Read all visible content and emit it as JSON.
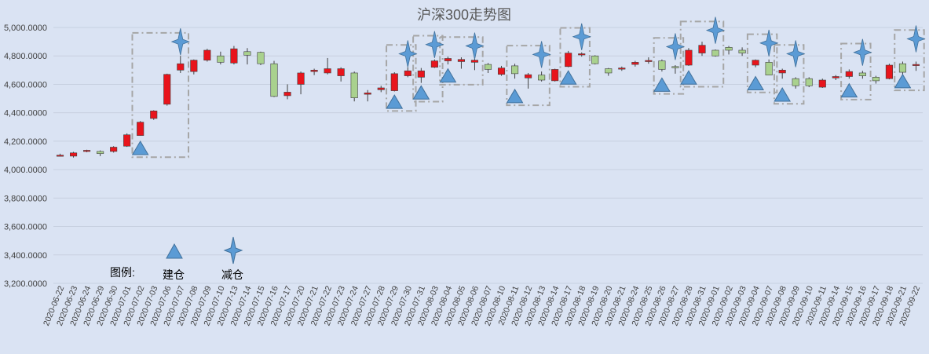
{
  "chart_data": {
    "type": "candlestick",
    "title": "沪深300走势图",
    "ylim": [
      3200,
      5000
    ],
    "yticks": [
      3200,
      3400,
      3600,
      3800,
      4000,
      4200,
      4400,
      4600,
      4800,
      5000
    ],
    "ytick_labels": [
      "3,200.0000",
      "3,400.0000",
      "3,600.0000",
      "3,800.0000",
      "4,000.0000",
      "4,200.0000",
      "4,400.0000",
      "4,600.0000",
      "4,800.0000",
      "5,000.0000"
    ],
    "grid": true,
    "categories": [
      "2020-06-22",
      "2020-06-23",
      "2020-06-24",
      "2020-06-29",
      "2020-06-30",
      "2020-07-01",
      "2020-07-02",
      "2020-07-03",
      "2020-07-06",
      "2020-07-07",
      "2020-07-08",
      "2020-07-09",
      "2020-07-10",
      "2020-07-13",
      "2020-07-14",
      "2020-07-15",
      "2020-07-16",
      "2020-07-17",
      "2020-07-20",
      "2020-07-21",
      "2020-07-22",
      "2020-07-23",
      "2020-07-24",
      "2020-07-27",
      "2020-07-28",
      "2020-07-29",
      "2020-07-30",
      "2020-07-31",
      "2020-08-03",
      "2020-08-04",
      "2020-08-05",
      "2020-08-06",
      "2020-08-07",
      "2020-08-10",
      "2020-08-11",
      "2020-08-12",
      "2020-08-13",
      "2020-08-14",
      "2020-08-17",
      "2020-08-18",
      "2020-08-19",
      "2020-08-20",
      "2020-08-21",
      "2020-08-24",
      "2020-08-25",
      "2020-08-26",
      "2020-08-27",
      "2020-08-28",
      "2020-08-31",
      "2020-09-01",
      "2020-09-02",
      "2020-09-03",
      "2020-09-04",
      "2020-09-07",
      "2020-09-08",
      "2020-09-09",
      "2020-09-10",
      "2020-09-11",
      "2020-09-14",
      "2020-09-15",
      "2020-09-16",
      "2020-09-17",
      "2020-09-18",
      "2020-09-21",
      "2020-09-22"
    ],
    "ohlc": [
      {
        "o": 4098,
        "h": 4112,
        "l": 4095,
        "c": 4102
      },
      {
        "o": 4095,
        "h": 4125,
        "l": 4085,
        "c": 4118
      },
      {
        "o": 4128,
        "h": 4140,
        "l": 4122,
        "c": 4136
      },
      {
        "o": 4128,
        "h": 4135,
        "l": 4095,
        "c": 4113
      },
      {
        "o": 4128,
        "h": 4165,
        "l": 4120,
        "c": 4158
      },
      {
        "o": 4165,
        "h": 4255,
        "l": 4160,
        "c": 4245
      },
      {
        "o": 4240,
        "h": 4342,
        "l": 4238,
        "c": 4334
      },
      {
        "o": 4360,
        "h": 4418,
        "l": 4350,
        "c": 4413
      },
      {
        "o": 4460,
        "h": 4675,
        "l": 4450,
        "c": 4670
      },
      {
        "o": 4700,
        "h": 4800,
        "l": 4680,
        "c": 4745
      },
      {
        "o": 4690,
        "h": 4775,
        "l": 4670,
        "c": 4770
      },
      {
        "o": 4770,
        "h": 4850,
        "l": 4760,
        "c": 4840
      },
      {
        "o": 4800,
        "h": 4830,
        "l": 4740,
        "c": 4755
      },
      {
        "o": 4750,
        "h": 4870,
        "l": 4740,
        "c": 4850
      },
      {
        "o": 4830,
        "h": 4855,
        "l": 4740,
        "c": 4805
      },
      {
        "o": 4825,
        "h": 4830,
        "l": 4735,
        "c": 4745
      },
      {
        "o": 4745,
        "h": 4765,
        "l": 4510,
        "c": 4515
      },
      {
        "o": 4520,
        "h": 4600,
        "l": 4495,
        "c": 4545
      },
      {
        "o": 4600,
        "h": 4690,
        "l": 4530,
        "c": 4680
      },
      {
        "o": 4690,
        "h": 4710,
        "l": 4665,
        "c": 4700
      },
      {
        "o": 4680,
        "h": 4785,
        "l": 4670,
        "c": 4710
      },
      {
        "o": 4660,
        "h": 4720,
        "l": 4620,
        "c": 4710
      },
      {
        "o": 4680,
        "h": 4690,
        "l": 4480,
        "c": 4505
      },
      {
        "o": 4530,
        "h": 4560,
        "l": 4480,
        "c": 4540
      },
      {
        "o": 4562,
        "h": 4590,
        "l": 4545,
        "c": 4575
      },
      {
        "o": 4555,
        "h": 4685,
        "l": 4550,
        "c": 4675
      },
      {
        "o": 4660,
        "h": 4720,
        "l": 4650,
        "c": 4695
      },
      {
        "o": 4650,
        "h": 4715,
        "l": 4610,
        "c": 4695
      },
      {
        "o": 4720,
        "h": 4775,
        "l": 4715,
        "c": 4765
      },
      {
        "o": 4765,
        "h": 4795,
        "l": 4740,
        "c": 4782
      },
      {
        "o": 4760,
        "h": 4790,
        "l": 4710,
        "c": 4775
      },
      {
        "o": 4755,
        "h": 4790,
        "l": 4700,
        "c": 4770
      },
      {
        "o": 4740,
        "h": 4750,
        "l": 4680,
        "c": 4705
      },
      {
        "o": 4670,
        "h": 4730,
        "l": 4660,
        "c": 4715
      },
      {
        "o": 4730,
        "h": 4745,
        "l": 4640,
        "c": 4675
      },
      {
        "o": 4645,
        "h": 4680,
        "l": 4570,
        "c": 4668
      },
      {
        "o": 4665,
        "h": 4690,
        "l": 4620,
        "c": 4630
      },
      {
        "o": 4625,
        "h": 4710,
        "l": 4620,
        "c": 4705
      },
      {
        "o": 4725,
        "h": 4835,
        "l": 4720,
        "c": 4820
      },
      {
        "o": 4810,
        "h": 4825,
        "l": 4795,
        "c": 4815
      },
      {
        "o": 4800,
        "h": 4805,
        "l": 4740,
        "c": 4745
      },
      {
        "o": 4710,
        "h": 4715,
        "l": 4660,
        "c": 4680
      },
      {
        "o": 4710,
        "h": 4725,
        "l": 4695,
        "c": 4715
      },
      {
        "o": 4740,
        "h": 4765,
        "l": 4725,
        "c": 4755
      },
      {
        "o": 4760,
        "h": 4790,
        "l": 4745,
        "c": 4768
      },
      {
        "o": 4765,
        "h": 4775,
        "l": 4690,
        "c": 4705
      },
      {
        "o": 4725,
        "h": 4735,
        "l": 4675,
        "c": 4718
      },
      {
        "o": 4735,
        "h": 4855,
        "l": 4730,
        "c": 4840
      },
      {
        "o": 4820,
        "h": 4900,
        "l": 4800,
        "c": 4875
      },
      {
        "o": 4840,
        "h": 4845,
        "l": 4795,
        "c": 4800
      },
      {
        "o": 4860,
        "h": 4870,
        "l": 4810,
        "c": 4840
      },
      {
        "o": 4840,
        "h": 4860,
        "l": 4800,
        "c": 4820
      },
      {
        "o": 4735,
        "h": 4775,
        "l": 4720,
        "c": 4770
      },
      {
        "o": 4755,
        "h": 4775,
        "l": 4665,
        "c": 4665
      },
      {
        "o": 4680,
        "h": 4710,
        "l": 4640,
        "c": 4700
      },
      {
        "o": 4640,
        "h": 4650,
        "l": 4570,
        "c": 4590
      },
      {
        "o": 4640,
        "h": 4650,
        "l": 4580,
        "c": 4590
      },
      {
        "o": 4580,
        "h": 4640,
        "l": 4575,
        "c": 4630
      },
      {
        "o": 4645,
        "h": 4665,
        "l": 4630,
        "c": 4655
      },
      {
        "o": 4655,
        "h": 4705,
        "l": 4640,
        "c": 4690
      },
      {
        "o": 4680,
        "h": 4695,
        "l": 4640,
        "c": 4660
      },
      {
        "o": 4650,
        "h": 4660,
        "l": 4605,
        "c": 4625
      },
      {
        "o": 4640,
        "h": 4745,
        "l": 4635,
        "c": 4735
      },
      {
        "o": 4745,
        "h": 4760,
        "l": 4660,
        "c": 4685
      },
      {
        "o": 4740,
        "h": 4760,
        "l": 4695,
        "c": 4740
      }
    ],
    "up_color": "#e8141c",
    "down_color": "#a9d18e",
    "candle_border": "#404040",
    "highlight_groups": [
      {
        "from": 6,
        "to": 9
      },
      {
        "from": 25,
        "to": 26
      },
      {
        "from": 27,
        "to": 28
      },
      {
        "from": 29,
        "to": 31
      },
      {
        "from": 34,
        "to": 36
      },
      {
        "from": 38,
        "to": 39
      },
      {
        "from": 45,
        "to": 46
      },
      {
        "from": 47,
        "to": 49
      },
      {
        "from": 52,
        "to": 53
      },
      {
        "from": 54,
        "to": 55
      },
      {
        "from": 59,
        "to": 60
      },
      {
        "from": 63,
        "to": 64
      }
    ],
    "buy_markers": [
      {
        "index": 6,
        "value": 4150
      },
      {
        "index": 25,
        "value": 4475
      },
      {
        "index": 27,
        "value": 4540
      },
      {
        "index": 29,
        "value": 4660
      },
      {
        "index": 34,
        "value": 4515
      },
      {
        "index": 38,
        "value": 4645
      },
      {
        "index": 45,
        "value": 4595
      },
      {
        "index": 47,
        "value": 4645
      },
      {
        "index": 52,
        "value": 4605
      },
      {
        "index": 54,
        "value": 4525
      },
      {
        "index": 59,
        "value": 4555
      },
      {
        "index": 63,
        "value": 4620
      }
    ],
    "sell_markers": [
      {
        "index": 9,
        "value": 4900
      },
      {
        "index": 26,
        "value": 4815
      },
      {
        "index": 28,
        "value": 4880
      },
      {
        "index": 31,
        "value": 4870
      },
      {
        "index": 36,
        "value": 4810
      },
      {
        "index": 39,
        "value": 4935
      },
      {
        "index": 46,
        "value": 4865
      },
      {
        "index": 49,
        "value": 4980
      },
      {
        "index": 53,
        "value": 4890
      },
      {
        "index": 55,
        "value": 4815
      },
      {
        "index": 60,
        "value": 4825
      },
      {
        "index": 64,
        "value": 4920
      }
    ],
    "buy_color": "#5b9bd5",
    "sell_color": "#5b9bd5",
    "legend": {
      "heading": "图例:",
      "buy_label": "建仓",
      "sell_label": "减仓"
    }
  }
}
